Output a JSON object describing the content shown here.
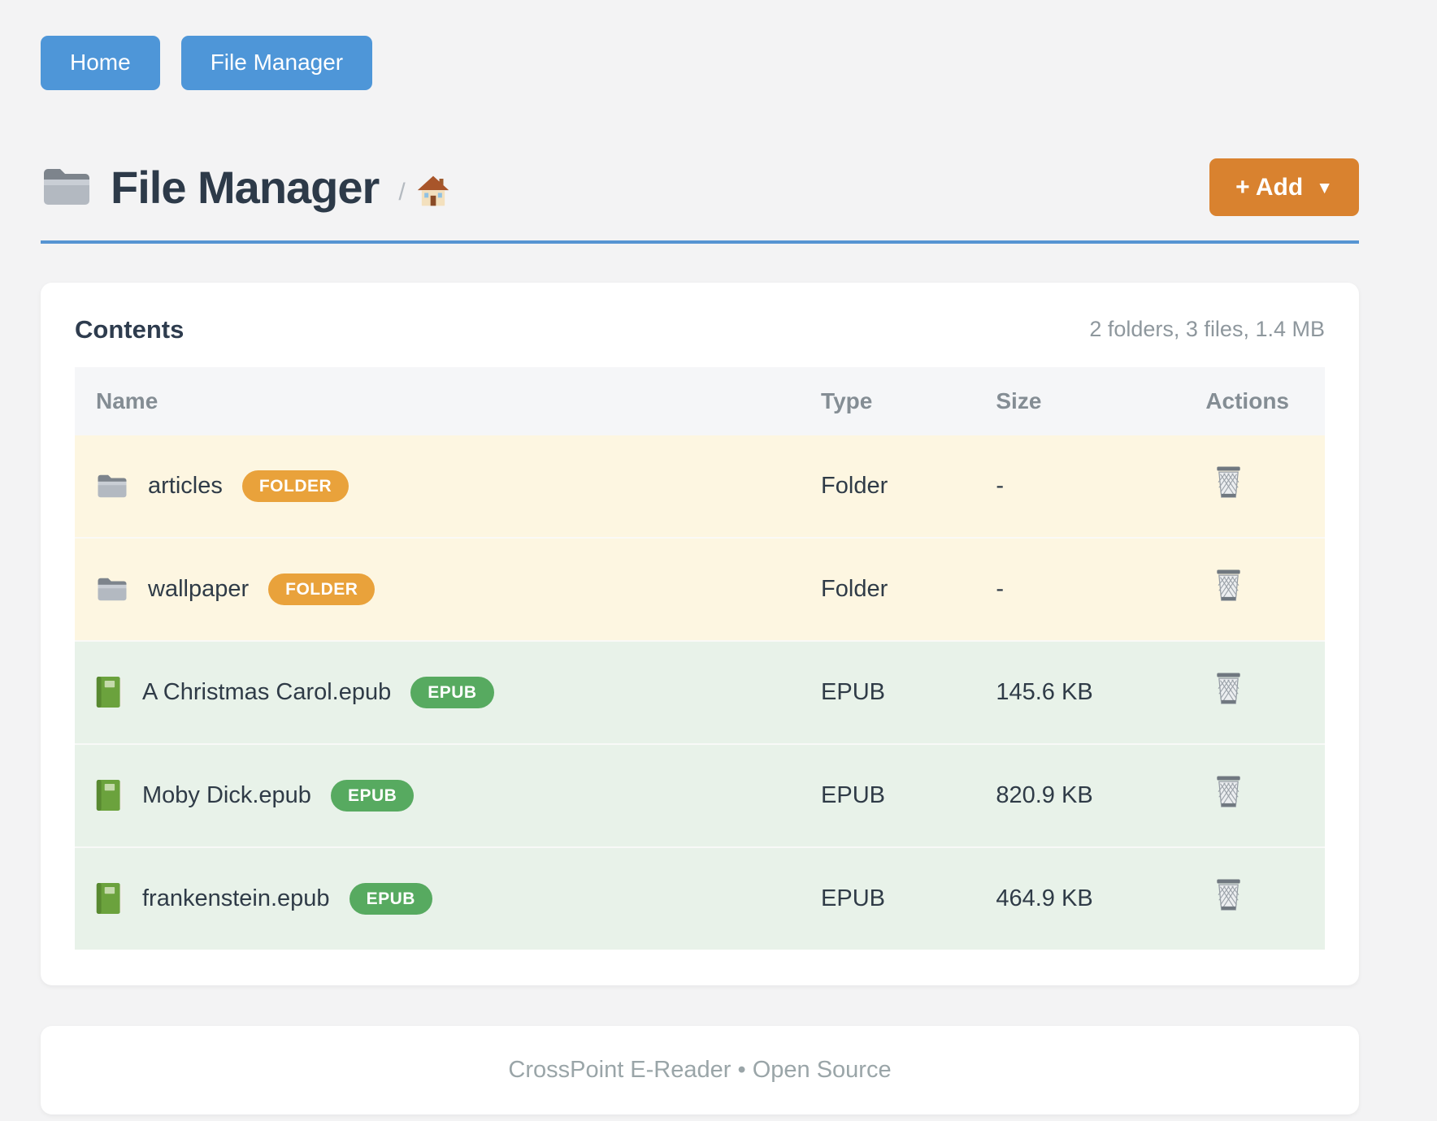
{
  "nav": {
    "items": [
      {
        "label": "Home"
      },
      {
        "label": "File Manager"
      }
    ]
  },
  "header": {
    "title": "File Manager",
    "title_icon": "folder-icon",
    "breadcrumb_separator": "/",
    "breadcrumb_home_icon": "house-icon",
    "add_button_label": "+ Add",
    "add_button_caret": "▼"
  },
  "contents": {
    "title": "Contents",
    "summary": "2 folders, 3 files, 1.4 MB",
    "columns": [
      "Name",
      "Type",
      "Size",
      "Actions"
    ],
    "rows": [
      {
        "name": "articles",
        "badge": "FOLDER",
        "type": "Folder",
        "size": "-",
        "kind": "folder",
        "icon": "folder-icon",
        "action_icon": "trash-icon"
      },
      {
        "name": "wallpaper",
        "badge": "FOLDER",
        "type": "Folder",
        "size": "-",
        "kind": "folder",
        "icon": "folder-icon",
        "action_icon": "trash-icon"
      },
      {
        "name": "A Christmas Carol.epub",
        "badge": "EPUB",
        "type": "EPUB",
        "size": "145.6 KB",
        "kind": "epub",
        "icon": "book-icon",
        "action_icon": "trash-icon"
      },
      {
        "name": "Moby Dick.epub",
        "badge": "EPUB",
        "type": "EPUB",
        "size": "820.9 KB",
        "kind": "epub",
        "icon": "book-icon",
        "action_icon": "trash-icon"
      },
      {
        "name": "frankenstein.epub",
        "badge": "EPUB",
        "type": "EPUB",
        "size": "464.9 KB",
        "kind": "epub",
        "icon": "book-icon",
        "action_icon": "trash-icon"
      }
    ]
  },
  "footer": {
    "text": "CrossPoint E-Reader • Open Source"
  },
  "colors": {
    "primary_blue": "#4e96d8",
    "divider_blue": "#5694d2",
    "accent_orange": "#d9822f",
    "badge_folder": "#e9a23b",
    "badge_epub": "#57aa60",
    "row_folder_bg": "#fdf6e1",
    "row_epub_bg": "#e8f2e9",
    "page_bg": "#f3f3f4"
  }
}
